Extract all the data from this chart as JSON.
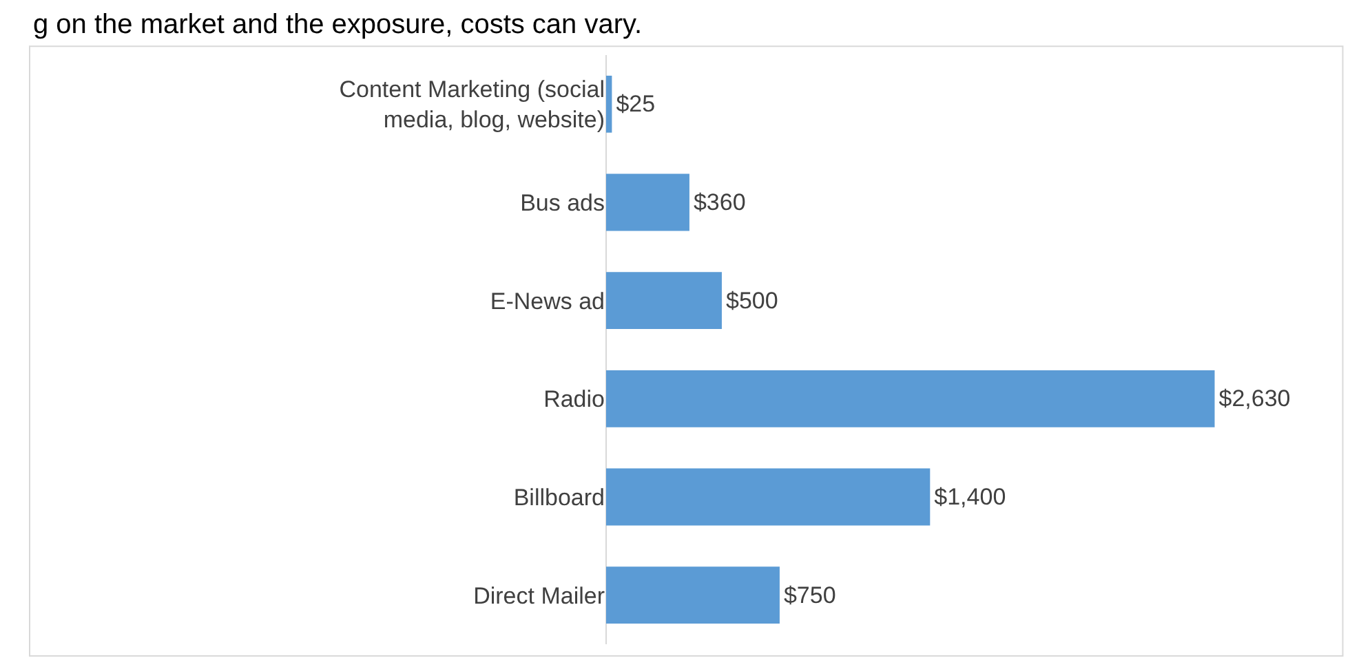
{
  "chart_data": {
    "type": "bar",
    "orientation": "horizontal",
    "annotations": [
      "g on the market and the exposure, costs can vary."
    ],
    "categories": [
      "Content Marketing (social media, blog, website)",
      "Bus ads",
      "E-News ad",
      "Radio",
      "Billboard",
      "Direct Mailer"
    ],
    "values": [
      25,
      360,
      500,
      2630,
      1400,
      750
    ],
    "value_labels": [
      "$25",
      "$360",
      "$500",
      "$2,630",
      "$1,400",
      "$750"
    ],
    "color": "#5b9bd5",
    "grid": false,
    "legend": false
  }
}
